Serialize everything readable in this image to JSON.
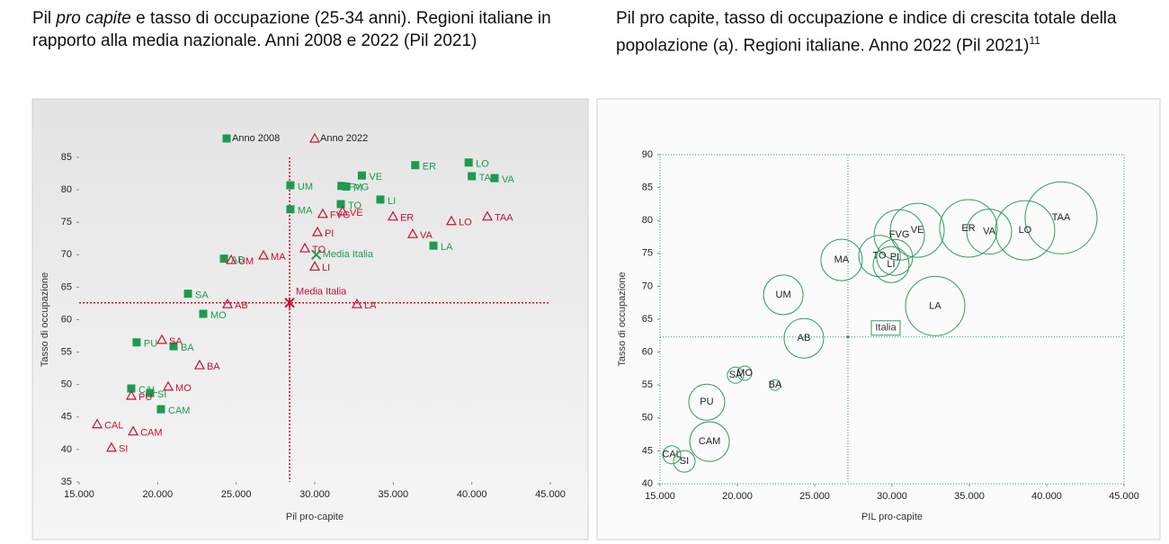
{
  "chart_data": [
    {
      "type": "scatter",
      "title_parts": [
        {
          "text": "Pil "
        },
        {
          "text": "pro capite",
          "italic": true
        },
        {
          "text": " e tasso di occupazione (25-34 anni). Regioni italiane in rapporto alla media nazionale. Anni 2008 e 2022 (Pil 2021)"
        }
      ],
      "xlabel": "Pil pro-capite",
      "ylabel": "Tasso di occupazione",
      "xlim": [
        15000,
        45000
      ],
      "xticks": [
        {
          "value": 15000,
          "label": "15.000"
        },
        {
          "value": 20000,
          "label": "20.000"
        },
        {
          "value": 25000,
          "label": "25.000"
        },
        {
          "value": 30000,
          "label": "30.000"
        },
        {
          "value": 35000,
          "label": "35.000"
        },
        {
          "value": 40000,
          "label": "40.000"
        },
        {
          "value": 45000,
          "label": "45.000"
        }
      ],
      "ylim": [
        35,
        85
      ],
      "yticks": [
        35,
        40,
        45,
        50,
        55,
        60,
        65,
        70,
        75,
        80,
        85
      ],
      "series": [
        {
          "name": "Anno 2008",
          "color": "#1e9a50",
          "marker": "square",
          "labels": [
            "LO",
            "VA",
            "TAA",
            "ER",
            "VE",
            "FVG",
            "PI",
            "UM",
            "MA",
            "TO",
            "LI",
            "LA",
            "AB",
            "SA",
            "MO",
            "PU",
            "BA",
            "CAL",
            "SI",
            "CAM"
          ],
          "x": [
            39800,
            41450,
            40000,
            36400,
            33000,
            31700,
            32000,
            28450,
            28450,
            31660,
            34180,
            37560,
            24220,
            21930,
            22900,
            18660,
            21010,
            18320,
            19520,
            20210
          ],
          "y": [
            84.2,
            81.8,
            82.1,
            83.8,
            82.2,
            80.6,
            80.5,
            80.7,
            77.0,
            77.8,
            78.5,
            71.4,
            69.4,
            64.0,
            60.9,
            56.5,
            55.9,
            49.4,
            48.7,
            46.2
          ]
        },
        {
          "name": "Anno 2022",
          "color": "#c8102e",
          "marker": "triangle",
          "labels": [
            "TAA",
            "LO",
            "ER",
            "VA",
            "VE",
            "FVG",
            "PI",
            "TO",
            "LI",
            "MA",
            "UM",
            "AB",
            "LA",
            "SA",
            "BA",
            "MO",
            "PU",
            "CAM",
            "CAL",
            "SI"
          ],
          "x": [
            40990,
            38700,
            34980,
            36240,
            31770,
            30510,
            30170,
            29370,
            30000,
            26740,
            24680,
            24450,
            32690,
            20270,
            22670,
            20670,
            18320,
            18440,
            16150,
            17060
          ],
          "y": [
            75.9,
            75.2,
            75.9,
            73.2,
            76.7,
            76.3,
            73.5,
            71.0,
            68.2,
            69.9,
            69.2,
            62.4,
            62.4,
            56.9,
            53.0,
            49.7,
            48.3,
            42.8,
            43.9,
            40.3
          ]
        }
      ],
      "references": [
        {
          "label": "Media Italia",
          "x": 30100,
          "y": 70.0,
          "color": "#1e9a50",
          "marker": "x",
          "lines": false
        },
        {
          "label": "Media Italia",
          "x": 28400,
          "y": 62.6,
          "color": "#c8102e",
          "marker": "star",
          "lines": true
        }
      ],
      "legend": "top"
    },
    {
      "type": "bubble",
      "title_parts": [
        {
          "text": "Pil pro capite, tasso di occupazione e indice di crescita totale della popolazione (a). Regioni italiane. Anno 2022 (Pil 2021)"
        },
        {
          "text": "11",
          "sup": true
        }
      ],
      "xlabel": "PIL pro-capite",
      "ylabel": "Tasso di occupazione",
      "xlim": [
        15000,
        45000
      ],
      "xticks": [
        {
          "value": 15000,
          "label": "15.000"
        },
        {
          "value": 20000,
          "label": "20.000"
        },
        {
          "value": 25000,
          "label": "25.000"
        },
        {
          "value": 30000,
          "label": "30.000"
        },
        {
          "value": 35000,
          "label": "35.000"
        },
        {
          "value": 40000,
          "label": "40.000"
        },
        {
          "value": 45000,
          "label": "45.000"
        }
      ],
      "ylim": [
        40,
        90
      ],
      "yticks": [
        40,
        45,
        50,
        55,
        60,
        65,
        70,
        75,
        80,
        85,
        90
      ],
      "series": [
        {
          "color": "#2e9e5b",
          "labels": [
            "TAA",
            "LO",
            "VA",
            "ER",
            "VE",
            "FVG",
            "TO",
            "PI",
            "LI",
            "MA",
            "LA",
            "UM",
            "AB",
            "SA",
            "MO",
            "BA",
            "PU",
            "CAM",
            "CAL",
            "SI"
          ],
          "x": [
            40930,
            38600,
            36280,
            34940,
            31630,
            30470,
            29190,
            30170,
            29940,
            26740,
            32790,
            22970,
            24300,
            19880,
            20470,
            22440,
            18020,
            18200,
            15760,
            16570
          ],
          "y": [
            80.4,
            78.5,
            78.3,
            78.8,
            78.5,
            77.8,
            74.6,
            74.4,
            73.3,
            74.0,
            67.0,
            68.7,
            62.1,
            56.5,
            56.8,
            55.0,
            52.4,
            46.4,
            44.4,
            43.4
          ],
          "sizes": [
            4.0,
            3.3,
            2.5,
            3.2,
            3.0,
            2.8,
            2.3,
            2.0,
            2.0,
            2.3,
            3.3,
            2.2,
            2.2,
            0.9,
            0.8,
            0.6,
            2.0,
            2.2,
            1.0,
            1.2
          ]
        }
      ],
      "references": [
        {
          "label": "Italia",
          "x": 27150,
          "y": 62.3,
          "color": "#2e9e5b",
          "marker": "box",
          "lines": true
        }
      ]
    }
  ]
}
